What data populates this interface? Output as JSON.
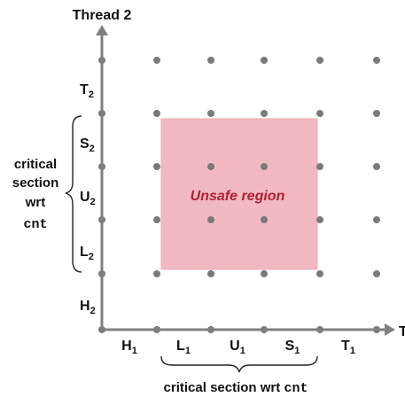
{
  "thread2_title": "Thread 2",
  "thread1_title": "T",
  "region": {
    "label": "Unsafe region",
    "fill_color": "#f2b9c2",
    "outline_color": "#ecaab5",
    "label_color": "#b01f33"
  },
  "x_ticks": [
    {
      "main": "H",
      "sub": "1"
    },
    {
      "main": "L",
      "sub": "1"
    },
    {
      "main": "U",
      "sub": "1"
    },
    {
      "main": "S",
      "sub": "1"
    },
    {
      "main": "T",
      "sub": "1"
    }
  ],
  "y_ticks": [
    {
      "main": "H",
      "sub": "2"
    },
    {
      "main": "L",
      "sub": "2"
    },
    {
      "main": "U",
      "sub": "2"
    },
    {
      "main": "S",
      "sub": "2"
    },
    {
      "main": "T",
      "sub": "2"
    }
  ],
  "x_critical_label": {
    "prefix": "critical section wrt ",
    "var": "cnt"
  },
  "y_critical_label": {
    "line1": "critical",
    "line2": "section",
    "line3": "wrt",
    "var": "cnt"
  },
  "dot_color": "#7a7a7a",
  "axis_color": "#808080"
}
